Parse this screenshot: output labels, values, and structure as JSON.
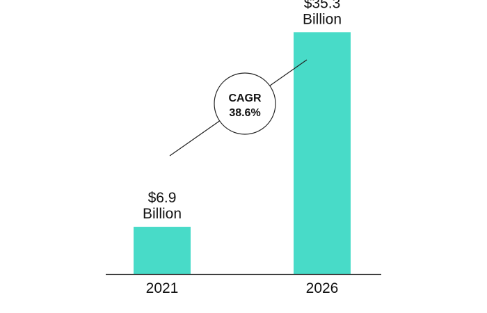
{
  "chart_data": {
    "type": "bar",
    "categories": [
      "2021",
      "2026"
    ],
    "values": [
      6.9,
      35.3
    ],
    "data_labels": [
      [
        "$6.9",
        "Billion"
      ],
      [
        "$35.3",
        "Billion"
      ]
    ],
    "title": "",
    "xlabel": "",
    "ylabel": "",
    "ylim": [
      0,
      40
    ],
    "grid": false,
    "legend": "none",
    "annotation": {
      "line1": "CAGR",
      "line2": "38.6%"
    },
    "colors": {
      "bar": "#48DBC8",
      "axis": "#222222",
      "text": "#111111"
    }
  }
}
